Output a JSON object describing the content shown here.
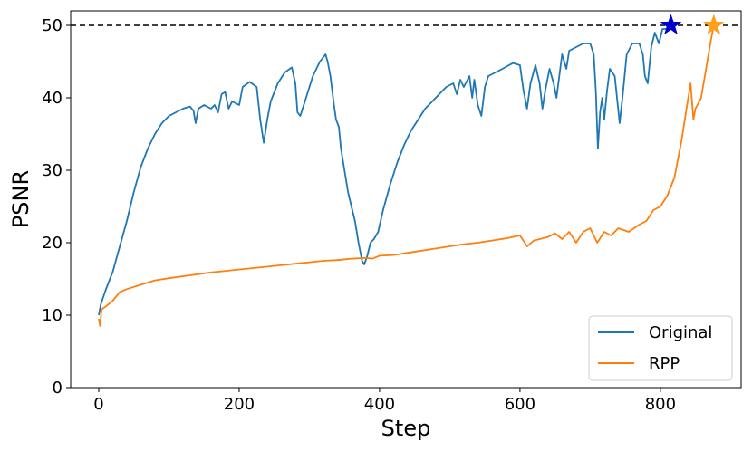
{
  "chart_data": {
    "type": "line",
    "xlabel": "Step",
    "ylabel": "PSNR",
    "xlim": [
      -40,
      915
    ],
    "ylim": [
      0,
      52
    ],
    "xticks": [
      0,
      200,
      400,
      600,
      800
    ],
    "yticks": [
      0,
      10,
      20,
      30,
      40,
      50
    ],
    "grid": false,
    "legend_position": "bottom-right",
    "reference_line": {
      "y": 50,
      "style": "dashed",
      "color": "#000000"
    },
    "series": [
      {
        "name": "Original",
        "color": "#1f77b4",
        "points": [
          [
            0,
            10
          ],
          [
            3,
            11.5
          ],
          [
            10,
            13.5
          ],
          [
            20,
            16
          ],
          [
            30,
            19.5
          ],
          [
            40,
            23
          ],
          [
            50,
            27
          ],
          [
            60,
            30.5
          ],
          [
            70,
            33
          ],
          [
            80,
            35
          ],
          [
            90,
            36.5
          ],
          [
            100,
            37.5
          ],
          [
            110,
            38
          ],
          [
            120,
            38.5
          ],
          [
            130,
            38.8
          ],
          [
            135,
            38.2
          ],
          [
            138,
            36.5
          ],
          [
            142,
            38.5
          ],
          [
            150,
            39
          ],
          [
            160,
            38.5
          ],
          [
            165,
            39
          ],
          [
            170,
            38
          ],
          [
            175,
            40.5
          ],
          [
            180,
            40.8
          ],
          [
            185,
            38.5
          ],
          [
            190,
            39.5
          ],
          [
            200,
            39
          ],
          [
            205,
            41.5
          ],
          [
            215,
            42.2
          ],
          [
            225,
            41.5
          ],
          [
            230,
            37
          ],
          [
            235,
            33.8
          ],
          [
            240,
            37
          ],
          [
            245,
            39.5
          ],
          [
            255,
            42
          ],
          [
            265,
            43.5
          ],
          [
            275,
            44.2
          ],
          [
            280,
            42
          ],
          [
            283,
            38
          ],
          [
            287,
            37.5
          ],
          [
            292,
            39
          ],
          [
            305,
            43
          ],
          [
            315,
            45
          ],
          [
            323,
            46
          ],
          [
            326,
            45
          ],
          [
            330,
            43
          ],
          [
            335,
            39
          ],
          [
            338,
            37
          ],
          [
            342,
            36
          ],
          [
            345,
            33
          ],
          [
            350,
            30
          ],
          [
            355,
            27
          ],
          [
            360,
            25
          ],
          [
            365,
            23
          ],
          [
            370,
            20
          ],
          [
            375,
            17.5
          ],
          [
            378,
            17
          ],
          [
            382,
            18
          ],
          [
            387,
            20
          ],
          [
            392,
            20.5
          ],
          [
            398,
            21.5
          ],
          [
            405,
            24.5
          ],
          [
            415,
            28
          ],
          [
            425,
            31
          ],
          [
            435,
            33.5
          ],
          [
            445,
            35.5
          ],
          [
            455,
            37
          ],
          [
            465,
            38.5
          ],
          [
            475,
            39.5
          ],
          [
            485,
            40.5
          ],
          [
            495,
            41.5
          ],
          [
            505,
            42
          ],
          [
            510,
            40.5
          ],
          [
            515,
            42.5
          ],
          [
            520,
            41.5
          ],
          [
            528,
            43
          ],
          [
            532,
            40
          ],
          [
            535,
            42.5
          ],
          [
            540,
            39
          ],
          [
            545,
            37.5
          ],
          [
            550,
            41.5
          ],
          [
            555,
            43
          ],
          [
            565,
            43.5
          ],
          [
            575,
            44
          ],
          [
            590,
            44.8
          ],
          [
            600,
            44.5
          ],
          [
            605,
            41
          ],
          [
            610,
            38.5
          ],
          [
            615,
            42
          ],
          [
            622,
            44.5
          ],
          [
            628,
            42
          ],
          [
            632,
            38.5
          ],
          [
            636,
            41
          ],
          [
            642,
            44
          ],
          [
            648,
            42
          ],
          [
            652,
            40
          ],
          [
            656,
            43
          ],
          [
            660,
            46
          ],
          [
            666,
            44
          ],
          [
            670,
            46.5
          ],
          [
            680,
            47
          ],
          [
            690,
            47.5
          ],
          [
            700,
            47.5
          ],
          [
            705,
            46
          ],
          [
            708,
            41
          ],
          [
            711,
            33
          ],
          [
            714,
            38
          ],
          [
            717,
            40
          ],
          [
            720,
            37
          ],
          [
            724,
            41
          ],
          [
            728,
            44
          ],
          [
            735,
            43
          ],
          [
            742,
            36.5
          ],
          [
            746,
            40
          ],
          [
            752,
            46
          ],
          [
            760,
            47.5
          ],
          [
            770,
            47.5
          ],
          [
            775,
            46
          ],
          [
            778,
            43
          ],
          [
            782,
            42
          ],
          [
            787,
            47
          ],
          [
            792,
            49
          ],
          [
            798,
            47.5
          ],
          [
            803,
            49.5
          ],
          [
            808,
            49.5
          ],
          [
            815,
            50
          ]
        ],
        "marker": {
          "x": 815,
          "y": 50,
          "shape": "star",
          "color": "#0000cc"
        }
      },
      {
        "name": "RPP",
        "color": "#ff7f0e",
        "points": [
          [
            0,
            9.5
          ],
          [
            2,
            8.5
          ],
          [
            4,
            10.8
          ],
          [
            10,
            11.2
          ],
          [
            20,
            12
          ],
          [
            30,
            13.2
          ],
          [
            40,
            13.6
          ],
          [
            60,
            14.2
          ],
          [
            80,
            14.8
          ],
          [
            100,
            15.1
          ],
          [
            130,
            15.5
          ],
          [
            160,
            15.9
          ],
          [
            190,
            16.2
          ],
          [
            220,
            16.5
          ],
          [
            250,
            16.8
          ],
          [
            280,
            17.1
          ],
          [
            300,
            17.3
          ],
          [
            320,
            17.5
          ],
          [
            340,
            17.6
          ],
          [
            360,
            17.8
          ],
          [
            380,
            17.9
          ],
          [
            390,
            17.8
          ],
          [
            400,
            18.2
          ],
          [
            420,
            18.3
          ],
          [
            440,
            18.6
          ],
          [
            460,
            18.9
          ],
          [
            480,
            19.2
          ],
          [
            500,
            19.5
          ],
          [
            520,
            19.8
          ],
          [
            540,
            20
          ],
          [
            560,
            20.3
          ],
          [
            580,
            20.6
          ],
          [
            600,
            21
          ],
          [
            610,
            19.5
          ],
          [
            620,
            20.3
          ],
          [
            640,
            20.8
          ],
          [
            650,
            21.3
          ],
          [
            660,
            20.5
          ],
          [
            670,
            21.5
          ],
          [
            680,
            20
          ],
          [
            690,
            21.5
          ],
          [
            700,
            22
          ],
          [
            710,
            20
          ],
          [
            720,
            21.5
          ],
          [
            730,
            21
          ],
          [
            740,
            22
          ],
          [
            755,
            21.5
          ],
          [
            770,
            22.5
          ],
          [
            780,
            23
          ],
          [
            790,
            24.5
          ],
          [
            800,
            25
          ],
          [
            810,
            26.5
          ],
          [
            820,
            29
          ],
          [
            830,
            34
          ],
          [
            838,
            39
          ],
          [
            843,
            42
          ],
          [
            847,
            37
          ],
          [
            850,
            38.5
          ],
          [
            858,
            40
          ],
          [
            865,
            44
          ],
          [
            872,
            48
          ],
          [
            876,
            50
          ]
        ],
        "marker": {
          "x": 876,
          "y": 50,
          "shape": "star",
          "color": "#ff9f1a"
        }
      }
    ]
  }
}
